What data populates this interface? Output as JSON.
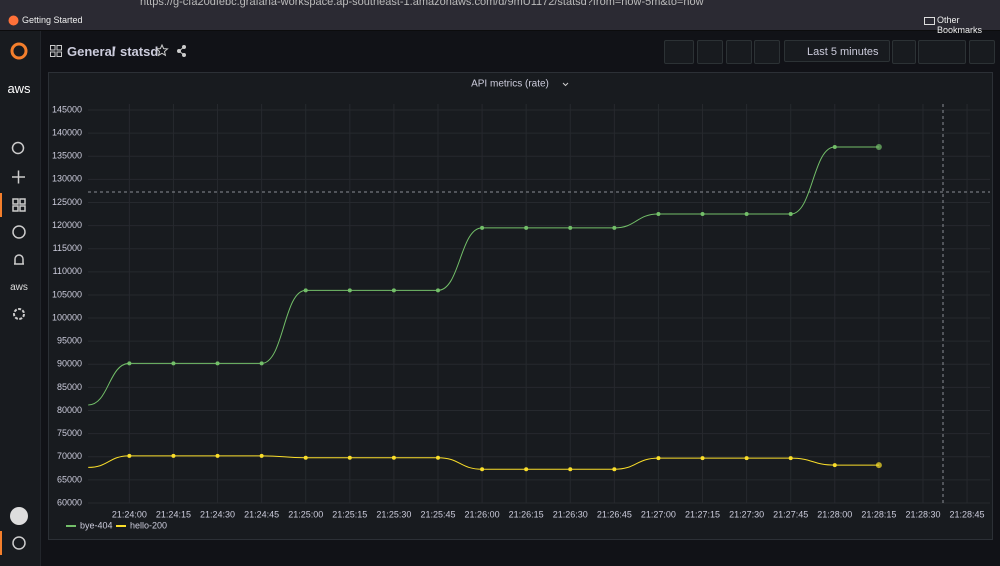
{
  "browser": {
    "url": "https://g-cfa20dfebc.grafana-workspace.ap-southeast-1.amazonaws.com/d/9mU1172/statsd?from=now-5m&to=now",
    "bookmarks": [
      "Getting Started",
      "Other Bookmarks"
    ]
  },
  "sidebar": {
    "logo": "aws",
    "aws_item": "aws"
  },
  "header": {
    "folder": "General",
    "separator": "/",
    "dashboard": "statsd",
    "time_range": "Last 5 minutes"
  },
  "chart_data": {
    "type": "line",
    "title": "API metrics (rate)",
    "x": [
      77026,
      77040,
      77055,
      77070,
      77085,
      77100,
      77115,
      77130,
      77145,
      77160,
      77175,
      77190,
      77205,
      77220,
      77235,
      77250,
      77265,
      77280,
      77295
    ],
    "series": [
      {
        "name": "bye-404",
        "color": "#73bf69",
        "values": [
          81200,
          90200,
          90200,
          90200,
          90200,
          106000,
          106000,
          106000,
          106000,
          119500,
          119500,
          119500,
          119500,
          122500,
          122500,
          122500,
          122500,
          137000,
          137000
        ]
      },
      {
        "name": "hello-200",
        "color": "#fade2a",
        "values": [
          67700,
          70200,
          70200,
          70200,
          70200,
          69800,
          69800,
          69800,
          69800,
          67300,
          67300,
          67300,
          67300,
          69700,
          69700,
          69700,
          69700,
          68200,
          68200
        ]
      }
    ],
    "xlim": [
      77013,
      77326
    ],
    "xticks": [
      {
        "value": 77040,
        "label": "21:24:00"
      },
      {
        "value": 77055,
        "label": "21:24:15"
      },
      {
        "value": 77070,
        "label": "21:24:30"
      },
      {
        "value": 77085,
        "label": "21:24:45"
      },
      {
        "value": 77100,
        "label": "21:25:00"
      },
      {
        "value": 77115,
        "label": "21:25:15"
      },
      {
        "value": 77130,
        "label": "21:25:30"
      },
      {
        "value": 77145,
        "label": "21:25:45"
      },
      {
        "value": 77160,
        "label": "21:26:00"
      },
      {
        "value": 77175,
        "label": "21:26:15"
      },
      {
        "value": 77190,
        "label": "21:26:30"
      },
      {
        "value": 77205,
        "label": "21:26:45"
      },
      {
        "value": 77220,
        "label": "21:27:00"
      },
      {
        "value": 77235,
        "label": "21:27:15"
      },
      {
        "value": 77250,
        "label": "21:27:30"
      },
      {
        "value": 77265,
        "label": "21:27:45"
      },
      {
        "value": 77280,
        "label": "21:28:00"
      },
      {
        "value": 77295,
        "label": "21:28:15"
      },
      {
        "value": 77310,
        "label": "21:28:30"
      },
      {
        "value": 77325,
        "label": "21:28:45"
      }
    ],
    "ylim": [
      60000,
      145000
    ],
    "yticks": [
      60000,
      65000,
      70000,
      75000,
      80000,
      85000,
      90000,
      95000,
      100000,
      105000,
      110000,
      115000,
      120000,
      125000,
      130000,
      135000,
      140000,
      145000
    ],
    "grid": true,
    "legend": "bottom-left"
  }
}
